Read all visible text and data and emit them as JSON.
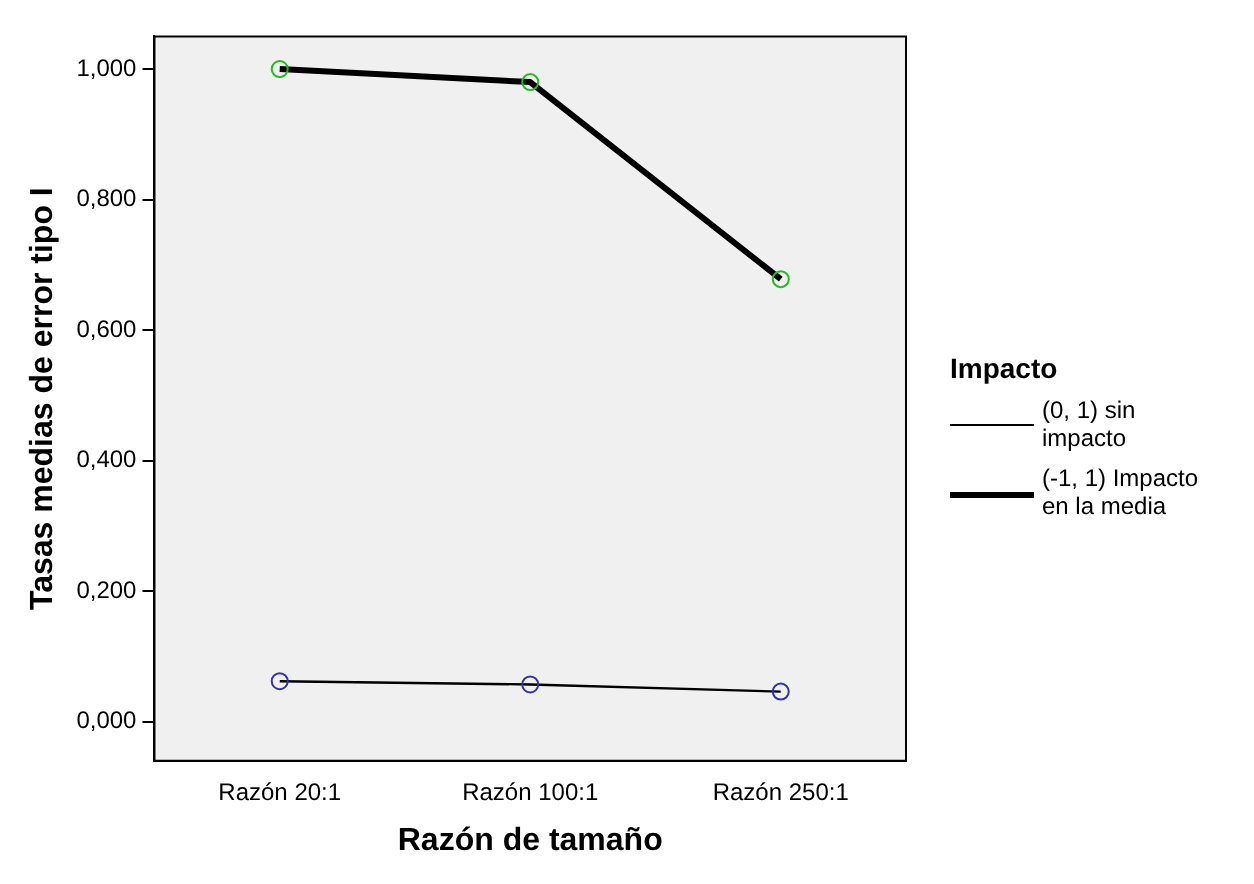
{
  "chart_data": {
    "type": "line",
    "xlabel": "Razón de tamaño",
    "ylabel": "Tasas medias de error tipo I",
    "legend_title": "Impacto",
    "categories": [
      "Razón 20:1",
      "Razón 100:1",
      "Razón 250:1"
    ],
    "series": [
      {
        "name": "(0, 1) sin impacto",
        "color": "#000000",
        "colors": [
          "#3333aa",
          "#3333aa",
          "#3333aa"
        ],
        "values": [
          0.062,
          0.057,
          0.046
        ]
      },
      {
        "name": "(-1, 1) Impacto en la media",
        "color": "#000000",
        "colors": [
          "#22bb22",
          "#22bb22",
          "#22bb22"
        ],
        "values": [
          1.0,
          0.98,
          0.678
        ]
      }
    ],
    "ylim": [
      -0.06,
      1.05
    ],
    "yticks": [
      {
        "value": 0,
        "label": "0,000"
      },
      {
        "value": 0.2,
        "label": "0,200"
      },
      {
        "value": 0.4,
        "label": "0,400"
      },
      {
        "value": 0.6,
        "label": "0,600"
      },
      {
        "value": 0.8,
        "label": "0,800"
      },
      {
        "value": 1,
        "label": "1,000"
      }
    ],
    "grid": false,
    "legend": "right",
    "marker": "circle",
    "line_style": "solid"
  }
}
